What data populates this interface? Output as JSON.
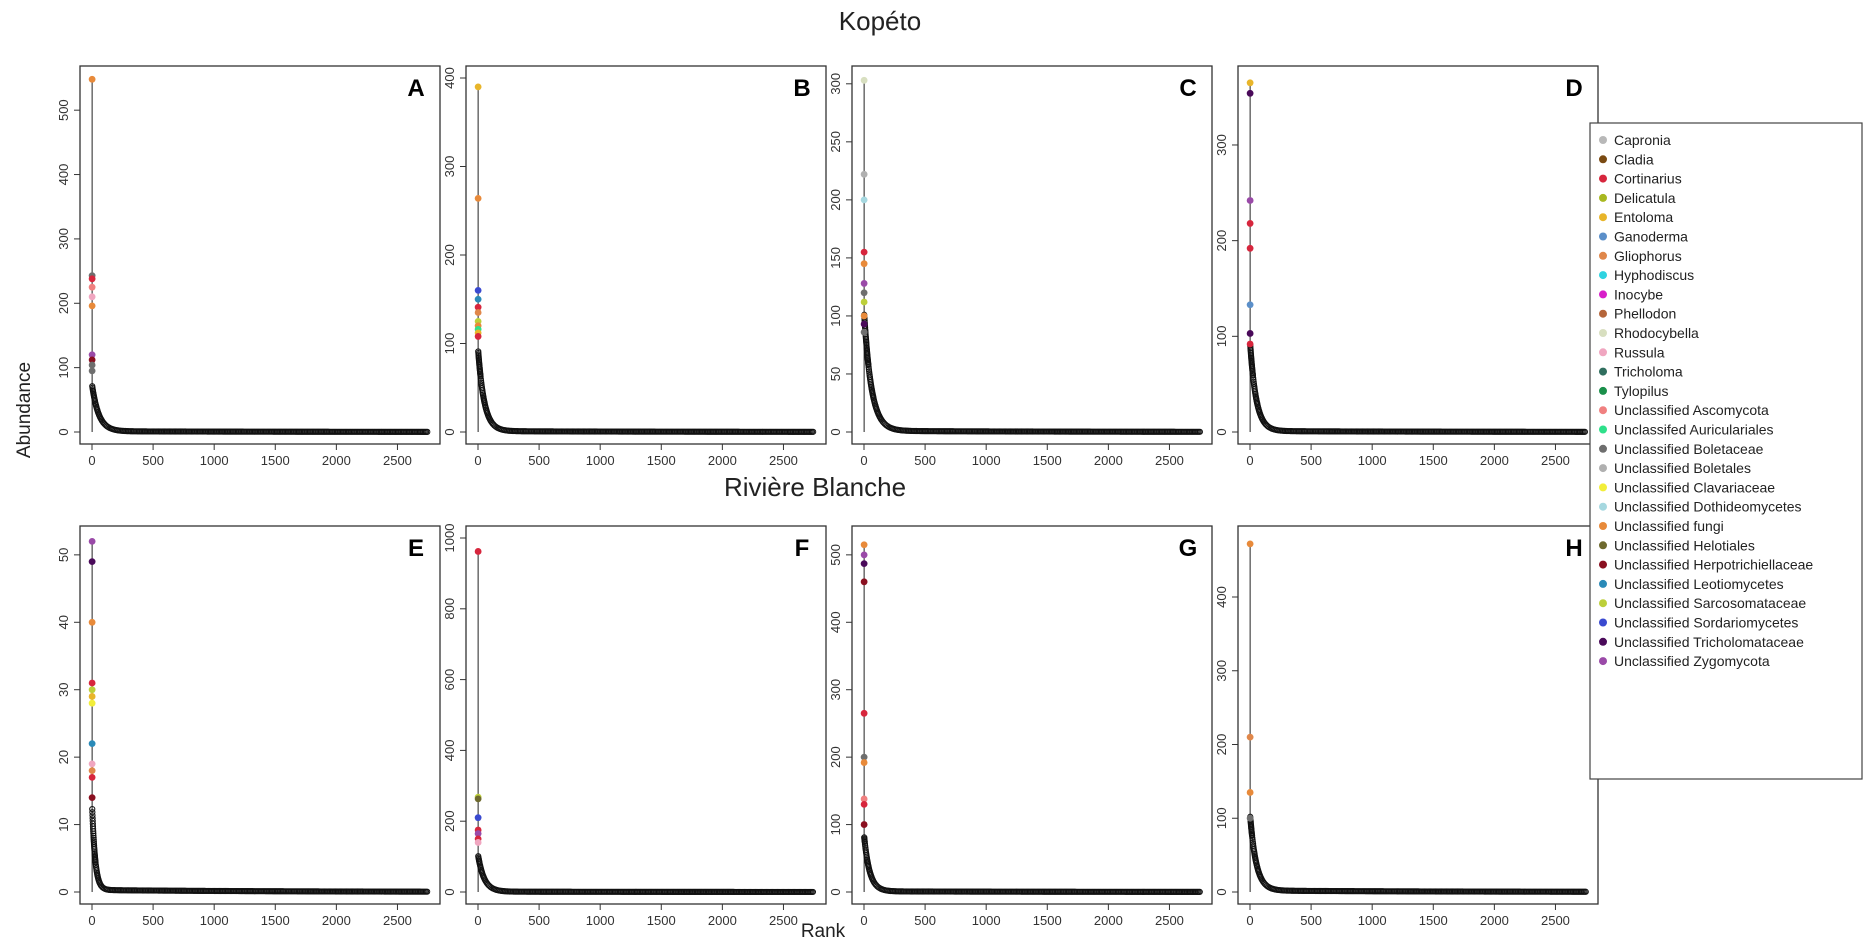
{
  "figure": {
    "site_titles": [
      "Kopéto",
      "Rivière Blanche"
    ],
    "xlabel": "Rank",
    "ylabel": "Abundance"
  },
  "legend": [
    {
      "name": "Capronia",
      "color": "#b8b8b8"
    },
    {
      "name": "Cladia",
      "color": "#7a4a12"
    },
    {
      "name": "Cortinarius",
      "color": "#d7263d"
    },
    {
      "name": "Delicatula",
      "color": "#a8b820"
    },
    {
      "name": "Entoloma",
      "color": "#e8b52a"
    },
    {
      "name": "Ganoderma",
      "color": "#5b8fc9"
    },
    {
      "name": "Gliophorus",
      "color": "#e0874a"
    },
    {
      "name": "Hyphodiscus",
      "color": "#2fd3e0"
    },
    {
      "name": "Inocybe",
      "color": "#d81fc9"
    },
    {
      "name": "Phellodon",
      "color": "#b5653a"
    },
    {
      "name": "Rhodocybella",
      "color": "#d8dfc0"
    },
    {
      "name": "Russula",
      "color": "#f0a6c0"
    },
    {
      "name": "Tricholoma",
      "color": "#2f6e5e"
    },
    {
      "name": "Tylopilus",
      "color": "#1a8f4a"
    },
    {
      "name": "Unclassified Ascomycota",
      "color": "#f08080"
    },
    {
      "name": "Unclassifed Auriculariales",
      "color": "#2ee08a"
    },
    {
      "name": "Unclassified Boletaceae",
      "color": "#6e6e6e"
    },
    {
      "name": "Unclassified Boletales",
      "color": "#b0b0b0"
    },
    {
      "name": "Unclassified Clavariaceae",
      "color": "#f2ee3a"
    },
    {
      "name": "Unclassified Dothideomycetes",
      "color": "#a6d8e0"
    },
    {
      "name": "Unclassified fungi",
      "color": "#e88a3a"
    },
    {
      "name": "Unclassified Helotiales",
      "color": "#6e6a2e"
    },
    {
      "name": "Unclassified Herpotrichiellaceae",
      "color": "#8a1020"
    },
    {
      "name": "Unclassified Leotiomycetes",
      "color": "#2a8ab8"
    },
    {
      "name": "Unclassified Sarcosomataceae",
      "color": "#bccf3a"
    },
    {
      "name": "Unclassified Sordariomycetes",
      "color": "#3a4ad0"
    },
    {
      "name": "Unclassified Tricholomataceae",
      "color": "#4a0a5a"
    },
    {
      "name": "Unclassified Zygomycota",
      "color": "#9a4aa8"
    }
  ],
  "chart_data": [
    {
      "type": "scatter",
      "panel": "A",
      "site": "Kopéto",
      "xlabel": "Rank",
      "ylabel": "Abundance",
      "xlim": [
        0,
        2750
      ],
      "ylim": [
        0,
        550
      ],
      "xticks": [
        0,
        500,
        1000,
        1500,
        2000,
        2500
      ],
      "yticks": [
        0,
        100,
        200,
        300,
        400,
        500
      ],
      "n_taxa": 2750,
      "tail": {
        "to": 70,
        "decay": 55,
        "floor": 1.2
      },
      "top_points": [
        {
          "value": 548,
          "color": "#e88a3a"
        },
        {
          "value": 243,
          "color": "#6e6e6e"
        },
        {
          "value": 238,
          "color": "#d7263d"
        },
        {
          "value": 225,
          "color": "#f08080"
        },
        {
          "value": 210,
          "color": "#f0a6c0"
        },
        {
          "value": 196,
          "color": "#e88a3a"
        },
        {
          "value": 120,
          "color": "#9a4aa8"
        },
        {
          "value": 112,
          "color": "#8a1020"
        },
        {
          "value": 104,
          "color": "#6e6e6e"
        },
        {
          "value": 95,
          "color": "#6e6e6e"
        }
      ]
    },
    {
      "type": "scatter",
      "panel": "B",
      "site": "Kopéto",
      "xlabel": "Rank",
      "ylabel": "Abundance",
      "xlim": [
        0,
        2750
      ],
      "ylim": [
        0,
        400
      ],
      "xticks": [
        0,
        500,
        1000,
        1500,
        2000,
        2500
      ],
      "yticks": [
        0,
        100,
        200,
        300,
        400
      ],
      "n_taxa": 2750,
      "tail": {
        "to": 90,
        "decay": 50,
        "floor": 1.0
      },
      "top_points": [
        {
          "value": 390,
          "color": "#e8b52a"
        },
        {
          "value": 264,
          "color": "#e88a3a"
        },
        {
          "value": 160,
          "color": "#3a4ad0"
        },
        {
          "value": 150,
          "color": "#2a8ab8"
        },
        {
          "value": 141,
          "color": "#d7263d"
        },
        {
          "value": 135,
          "color": "#e0874a"
        },
        {
          "value": 125,
          "color": "#bccf3a"
        },
        {
          "value": 120,
          "color": "#e88a3a"
        },
        {
          "value": 116,
          "color": "#2ee08a"
        },
        {
          "value": 112,
          "color": "#e8b52a"
        },
        {
          "value": 108,
          "color": "#d7263d"
        }
      ]
    },
    {
      "type": "scatter",
      "panel": "C",
      "site": "Kopéto",
      "xlabel": "Rank",
      "ylabel": "Abundance",
      "xlim": [
        0,
        2750
      ],
      "ylim": [
        0,
        305
      ],
      "xticks": [
        0,
        500,
        1000,
        1500,
        2000,
        2500
      ],
      "yticks": [
        0,
        50,
        100,
        150,
        200,
        250,
        300
      ],
      "n_taxa": 2750,
      "tail": {
        "to": 100,
        "decay": 60,
        "floor": 1.0
      },
      "top_points": [
        {
          "value": 303,
          "color": "#d8dfc0"
        },
        {
          "value": 222,
          "color": "#b0b0b0"
        },
        {
          "value": 200,
          "color": "#a6d8e0"
        },
        {
          "value": 155,
          "color": "#d7263d"
        },
        {
          "value": 145,
          "color": "#e88a3a"
        },
        {
          "value": 128,
          "color": "#9a4aa8"
        },
        {
          "value": 120,
          "color": "#6e6e6e"
        },
        {
          "value": 112,
          "color": "#bccf3a"
        },
        {
          "value": 100,
          "color": "#e88a3a"
        },
        {
          "value": 93,
          "color": "#4a0a5a"
        },
        {
          "value": 86,
          "color": "#6e6e6e"
        }
      ]
    },
    {
      "type": "scatter",
      "panel": "D",
      "site": "Kopéto",
      "xlabel": "Rank",
      "ylabel": "Abundance",
      "xlim": [
        0,
        2750
      ],
      "ylim": [
        0,
        370
      ],
      "xticks": [
        0,
        500,
        1000,
        1500,
        2000,
        2500
      ],
      "yticks": [
        0,
        100,
        200,
        300
      ],
      "n_taxa": 2750,
      "tail": {
        "to": 90,
        "decay": 50,
        "floor": 1.0
      },
      "top_points": [
        {
          "value": 365,
          "color": "#e8b52a"
        },
        {
          "value": 354,
          "color": "#4a0a5a"
        },
        {
          "value": 242,
          "color": "#9a4aa8"
        },
        {
          "value": 218,
          "color": "#d7263d"
        },
        {
          "value": 192,
          "color": "#d7263d"
        },
        {
          "value": 133,
          "color": "#5b8fc9"
        },
        {
          "value": 103,
          "color": "#4a0a5a"
        },
        {
          "value": 92,
          "color": "#d7263d"
        }
      ]
    },
    {
      "type": "scatter",
      "panel": "E",
      "site": "Rivière Blanche",
      "xlabel": "Rank",
      "ylabel": "Abundance",
      "xlim": [
        0,
        2750
      ],
      "ylim": [
        0,
        52.5
      ],
      "xticks": [
        0,
        500,
        1000,
        1500,
        2000,
        2500
      ],
      "yticks": [
        0,
        10,
        20,
        30,
        40,
        50
      ],
      "n_taxa": 2750,
      "tail": {
        "to": 12,
        "decay": 25,
        "floor": 0.3
      },
      "top_points": [
        {
          "value": 52,
          "color": "#9a4aa8"
        },
        {
          "value": 49,
          "color": "#4a0a5a"
        },
        {
          "value": 40,
          "color": "#e88a3a"
        },
        {
          "value": 31,
          "color": "#d7263d"
        },
        {
          "value": 30,
          "color": "#bccf3a"
        },
        {
          "value": 29,
          "color": "#e8b52a"
        },
        {
          "value": 28,
          "color": "#f2ee3a"
        },
        {
          "value": 22,
          "color": "#2a8ab8"
        },
        {
          "value": 19,
          "color": "#f0a6c0"
        },
        {
          "value": 18,
          "color": "#e0874a"
        },
        {
          "value": 17,
          "color": "#d7263d"
        },
        {
          "value": 14,
          "color": "#8a1020"
        }
      ]
    },
    {
      "type": "scatter",
      "panel": "F",
      "site": "Rivière Blanche",
      "xlabel": "Rank",
      "ylabel": "Abundance",
      "xlim": [
        0,
        2750
      ],
      "ylim": [
        0,
        1000
      ],
      "xticks": [
        0,
        500,
        1000,
        1500,
        2000,
        2500
      ],
      "yticks": [
        0,
        200,
        400,
        600,
        800,
        1000
      ],
      "n_taxa": 2750,
      "tail": {
        "to": 100,
        "decay": 50,
        "floor": 1.0
      },
      "top_points": [
        {
          "value": 962,
          "color": "#d7263d"
        },
        {
          "value": 268,
          "color": "#bccf3a"
        },
        {
          "value": 263,
          "color": "#6e6a2e"
        },
        {
          "value": 210,
          "color": "#3a4ad0"
        },
        {
          "value": 175,
          "color": "#d7263d"
        },
        {
          "value": 165,
          "color": "#9a4aa8"
        },
        {
          "value": 150,
          "color": "#d7263d"
        },
        {
          "value": 140,
          "color": "#f0a6c0"
        }
      ]
    },
    {
      "type": "scatter",
      "panel": "G",
      "site": "Rivière Blanche",
      "xlabel": "Rank",
      "ylabel": "Abundance",
      "xlim": [
        0,
        2750
      ],
      "ylim": [
        0,
        525
      ],
      "xticks": [
        0,
        500,
        1000,
        1500,
        2000,
        2500
      ],
      "yticks": [
        0,
        100,
        200,
        300,
        400,
        500
      ],
      "n_taxa": 2750,
      "tail": {
        "to": 80,
        "decay": 45,
        "floor": 1.0
      },
      "top_points": [
        {
          "value": 515,
          "color": "#e88a3a"
        },
        {
          "value": 500,
          "color": "#9a4aa8"
        },
        {
          "value": 487,
          "color": "#4a0a5a"
        },
        {
          "value": 460,
          "color": "#8a1020"
        },
        {
          "value": 265,
          "color": "#d7263d"
        },
        {
          "value": 200,
          "color": "#6e6e6e"
        },
        {
          "value": 192,
          "color": "#e88a3a"
        },
        {
          "value": 138,
          "color": "#f08080"
        },
        {
          "value": 130,
          "color": "#d7263d"
        },
        {
          "value": 100,
          "color": "#8a1020"
        }
      ]
    },
    {
      "type": "scatter",
      "panel": "H",
      "site": "Rivière Blanche",
      "xlabel": "Rank",
      "ylabel": "Abundance",
      "xlim": [
        0,
        2750
      ],
      "ylim": [
        0,
        480
      ],
      "xticks": [
        0,
        500,
        1000,
        1500,
        2000,
        2500
      ],
      "yticks": [
        0,
        100,
        200,
        300,
        400
      ],
      "n_taxa": 2750,
      "tail": {
        "to": 100,
        "decay": 50,
        "floor": 2.0
      },
      "top_points": [
        {
          "value": 472,
          "color": "#e88a3a"
        },
        {
          "value": 210,
          "color": "#e0874a"
        },
        {
          "value": 135,
          "color": "#e88a3a"
        },
        {
          "value": 100,
          "color": "#6e6e6e"
        }
      ]
    }
  ]
}
